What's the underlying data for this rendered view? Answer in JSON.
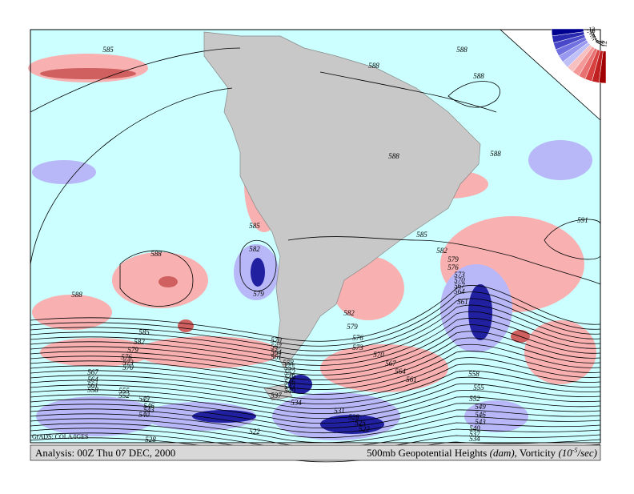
{
  "footer": {
    "left": "Analysis: 00Z Thu 07 DEC, 2000",
    "right_parts": [
      "500mb Geopotential Heights ",
      "(dam)",
      ", Vorticity ",
      "(10",
      "-5",
      "/sec)"
    ]
  },
  "credit": "GrADS: COLA/IGES",
  "colorbar_labels": [
    "12",
    "10",
    "8",
    "6",
    "4",
    "2",
    "-2",
    "-4",
    "-6",
    "-8",
    "-10",
    "-12"
  ],
  "contour_labels": [
    "585",
    "588",
    "588",
    "588",
    "588",
    "588",
    "591",
    "585",
    "585",
    "588",
    "582",
    "579",
    "582",
    "579",
    "576",
    "573",
    "570",
    "567",
    "564",
    "561",
    "588",
    "585",
    "582",
    "579",
    "576",
    "573",
    "570",
    "582",
    "579",
    "576",
    "573",
    "570",
    "567",
    "564",
    "561",
    "570",
    "567",
    "564",
    "561",
    "558",
    "555",
    "552",
    "549",
    "546",
    "543",
    "540",
    "537",
    "534",
    "531",
    "528",
    "525",
    "522",
    "522",
    "528",
    "558",
    "555",
    "552",
    "549",
    "546",
    "543",
    "540",
    "537",
    "534",
    "567",
    "564",
    "561",
    "558",
    "555",
    "552",
    "549",
    "546",
    "543",
    "540"
  ]
}
